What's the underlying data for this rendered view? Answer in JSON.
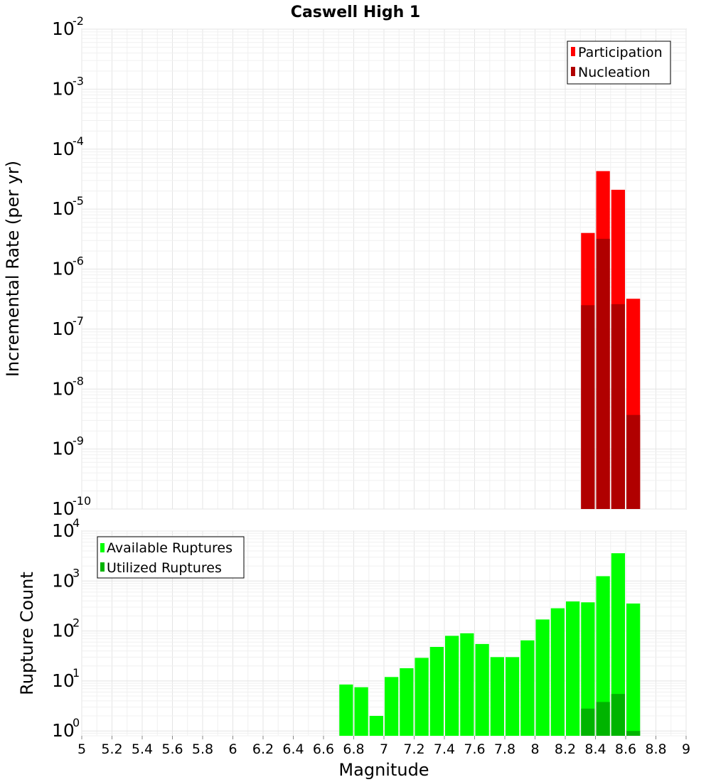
{
  "title": "Caswell High 1",
  "xlabel": "Magnitude",
  "chart_data": [
    {
      "type": "bar",
      "title": "Caswell High 1",
      "ylabel": "Incremental Rate (per yr)",
      "yscale": "log",
      "ylim": [
        1e-10,
        0.01
      ],
      "xlim": [
        5,
        9
      ],
      "grid": true,
      "legend_position": "top-right",
      "series": [
        {
          "name": "Participation",
          "color": "#ff0000",
          "x": [
            8.35,
            8.45,
            8.55,
            8.65
          ],
          "values": [
            4e-06,
            4.3e-05,
            2.1e-05,
            3.2e-07
          ]
        },
        {
          "name": "Nucleation",
          "color": "#b00000",
          "x": [
            8.35,
            8.45,
            8.55,
            8.65
          ],
          "values": [
            2.5e-07,
            3.2e-06,
            2.6e-07,
            3.7e-09
          ]
        }
      ]
    },
    {
      "type": "bar",
      "ylabel": "Rupture Count",
      "xlabel": "Magnitude",
      "yscale": "log",
      "ylim": [
        0.8,
        10000
      ],
      "xlim": [
        5,
        9
      ],
      "grid": true,
      "legend_position": "top-left",
      "series": [
        {
          "name": "Available Ruptures",
          "color": "#00ff00",
          "x": [
            6.75,
            6.85,
            6.95,
            7.05,
            7.15,
            7.25,
            7.35,
            7.45,
            7.55,
            7.65,
            7.75,
            7.85,
            7.95,
            8.05,
            8.15,
            8.25,
            8.35,
            8.45,
            8.55,
            8.65
          ],
          "values": [
            8.5,
            7.5,
            2,
            12,
            18,
            29,
            48,
            80,
            90,
            55,
            30,
            30,
            65,
            170,
            285,
            390,
            375,
            1250,
            3600,
            355
          ]
        },
        {
          "name": "Utilized Ruptures",
          "color": "#00b400",
          "x": [
            8.35,
            8.45,
            8.55,
            8.65
          ],
          "values": [
            2.8,
            3.8,
            5.5,
            1
          ]
        }
      ]
    }
  ],
  "axes": {
    "x_ticks": [
      "5",
      "5.2",
      "5.4",
      "5.6",
      "5.8",
      "6",
      "6.2",
      "6.4",
      "6.6",
      "6.8",
      "7",
      "7.2",
      "7.4",
      "7.6",
      "7.8",
      "8",
      "8.2",
      "8.4",
      "8.6",
      "8.8",
      "9"
    ],
    "top_y_ticks": [
      {
        "base": "10",
        "exp": "-10"
      },
      {
        "base": "10",
        "exp": "-9"
      },
      {
        "base": "10",
        "exp": "-8"
      },
      {
        "base": "10",
        "exp": "-7"
      },
      {
        "base": "10",
        "exp": "-6"
      },
      {
        "base": "10",
        "exp": "-5"
      },
      {
        "base": "10",
        "exp": "-4"
      },
      {
        "base": "10",
        "exp": "-3"
      },
      {
        "base": "10",
        "exp": "-2"
      }
    ],
    "bottom_y_ticks": [
      {
        "base": "10",
        "exp": "0"
      },
      {
        "base": "10",
        "exp": "1"
      },
      {
        "base": "10",
        "exp": "2"
      },
      {
        "base": "10",
        "exp": "3"
      },
      {
        "base": "10",
        "exp": "4"
      }
    ]
  }
}
